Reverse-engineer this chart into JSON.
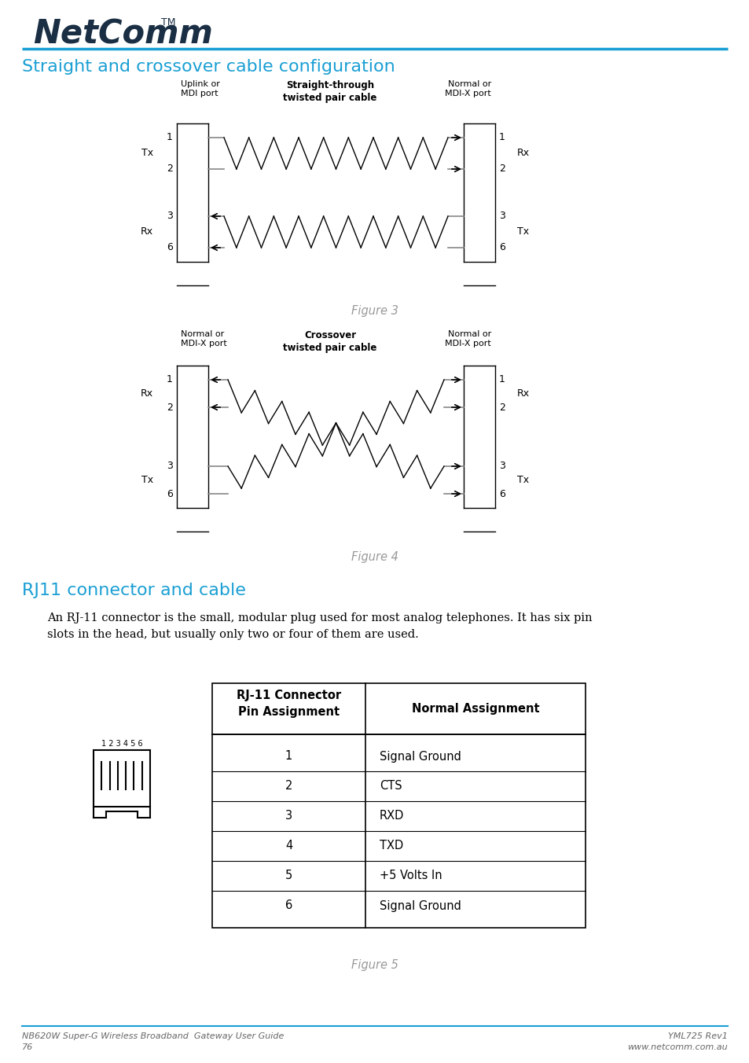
{
  "page_bg": "#ffffff",
  "logo_color": "#1a2e44",
  "blue_line_color": "#1a9fd4",
  "section1_title": "Straight and crossover cable configuration",
  "section1_color": "#1a9fd4",
  "section2_title": "RJ11 connector and cable",
  "section2_color": "#1a9fd4",
  "fig3_label": "Figure 3",
  "fig4_label": "Figure 4",
  "fig5_label": "Figure 5",
  "body_text": "An RJ-11 connector is the small, modular plug used for most analog telephones. It has six pin\nslots in the head, but usually only two or four of them are used.",
  "table_header1_line1": "RJ-11 Connector",
  "table_header1_line2": "Pin Assignment",
  "table_header2": "Normal Assignment",
  "table_pins": [
    "1",
    "2",
    "3",
    "4",
    "5",
    "6"
  ],
  "table_assignments": [
    "Signal Ground",
    "CTS",
    "RXD",
    "TXD",
    "+5 Volts In",
    "Signal Ground"
  ],
  "footer_left1": "NB620W Super-G Wireless Broadband  Gateway User Guide",
  "footer_left2": "76",
  "footer_right1": "YML725 Rev1",
  "footer_right2": "www.netcomm.com.au",
  "fig3": {
    "left_label_line1": "Uplink or",
    "left_label_line2": "MDI port",
    "center_label_line1": "Straight-through",
    "center_label_line2": "twisted pair cable",
    "right_label_line1": "Normal or",
    "right_label_line2": "MDI-X port",
    "left_tx": "Tx",
    "left_rx": "Rx",
    "right_rx": "Rx",
    "right_tx": "Tx"
  },
  "fig4": {
    "left_label_line1": "Normal or",
    "left_label_line2": "MDI-X port",
    "center_label_line1": "Crossover",
    "center_label_line2": "twisted pair cable",
    "right_label_line1": "Normal or",
    "right_label_line2": "MDI-X port",
    "left_rx": "Rx",
    "left_tx": "Tx",
    "right_rx": "Rx",
    "right_tx": "Tx"
  }
}
